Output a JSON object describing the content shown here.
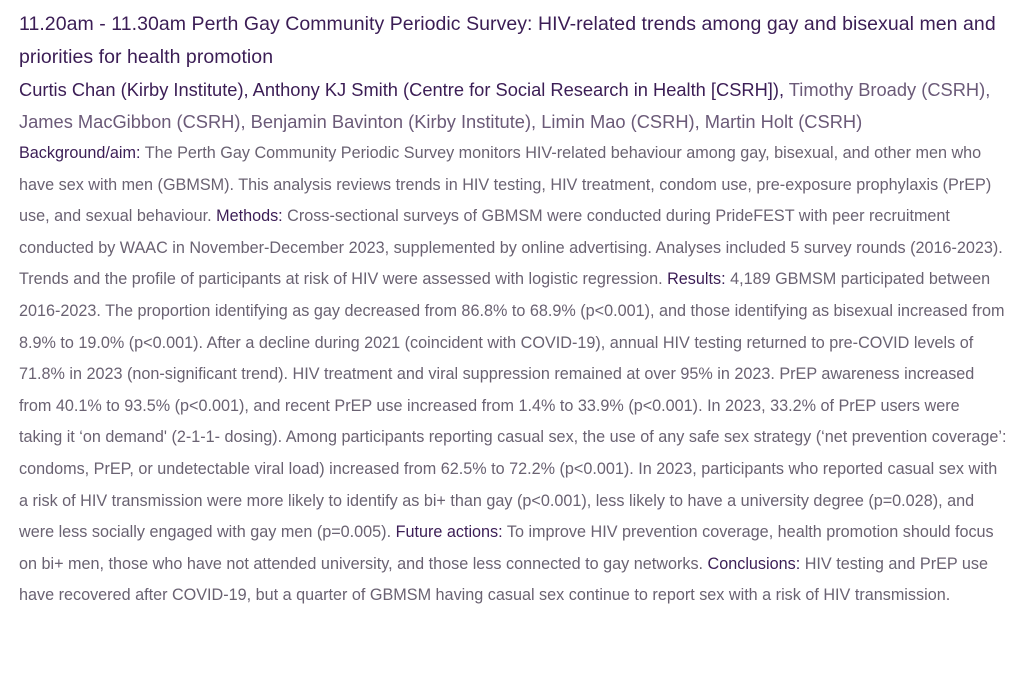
{
  "title": "11.20am - 11.30am Perth Gay Community Periodic Survey: HIV-related trends among gay and bisexual men and priorities for health promotion",
  "authors": {
    "presenters": "Curtis Chan (Kirby Institute), Anthony KJ Smith (Centre for Social Research in Health [CSRH]),",
    "others": " Timothy Broady (CSRH), James MacGibbon (CSRH), Benjamin Bavinton (Kirby Institute), Limin Mao (CSRH), Martin Holt (CSRH)"
  },
  "abstract": {
    "background_label": "Background/aim:",
    "background_text": " The Perth Gay Community Periodic Survey monitors HIV-related behaviour among gay, bisexual, and other men who have sex with men (GBMSM). This analysis reviews trends in HIV testing, HIV treatment, condom use, pre-exposure prophylaxis (PrEP) use, and sexual behaviour. ",
    "methods_label": "Methods:",
    "methods_text": " Cross-sectional surveys of GBMSM were conducted during PrideFEST with peer recruitment conducted by WAAC in November-December 2023, supplemented by online advertising. Analyses included 5 survey rounds (2016-2023). Trends and the profile of participants at risk of HIV were assessed with logistic regression. ",
    "results_label": "Results:",
    "results_text": " 4,189 GBMSM participated between 2016-2023. The proportion identifying as gay decreased from 86.8% to 68.9% (p<0.001), and those identifying as bisexual increased from 8.9% to 19.0% (p<0.001). After a decline during 2021 (coincident with COVID-19), annual HIV testing returned to pre-COVID levels of 71.8% in 2023 (non-significant trend). HIV treatment and viral suppression remained at over 95% in 2023. PrEP awareness increased from 40.1% to 93.5% (p<0.001), and recent PrEP use increased from 1.4% to 33.9% (p<0.001). In 2023, 33.2% of PrEP users were taking it ‘on demand' (2-1-1- dosing). Among participants reporting casual sex, the use of any safe sex strategy (‘net prevention coverage’: condoms, PrEP, or undetectable viral load) increased from 62.5% to 72.2% (p<0.001). In 2023, participants who reported casual sex with a risk of HIV transmission were more likely to identify as bi+ than gay (p<0.001), less likely to have a university degree (p=0.028), and were less socially engaged with gay men (p=0.005). ",
    "future_label": "Future actions:",
    "future_text": " To improve HIV prevention coverage, health promotion should focus on bi+ men, those who have not attended university, and those less connected to gay networks. ",
    "conclusions_label": "Conclusions:",
    "conclusions_text": " HIV testing and PrEP use have recovered after COVID-19, but a quarter of GBMSM having casual sex continue to report sex with a risk of HIV transmission."
  }
}
